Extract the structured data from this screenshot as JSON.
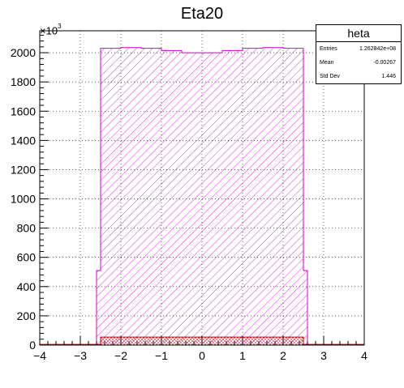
{
  "title": "Eta20",
  "y_multiplier": {
    "base": "×10",
    "exponent": "3"
  },
  "stats": {
    "name": "heta",
    "rows": [
      {
        "label": "Entries",
        "value": "1.262842e+08"
      },
      {
        "label": "Mean",
        "value": "-0.00267"
      },
      {
        "label": "Std Dev",
        "value": "1.446"
      }
    ]
  },
  "colors": {
    "main_hist": "#cc00cc",
    "sub_hist": "#cc0000",
    "frame": "#000000"
  },
  "chart_data": {
    "type": "histogram",
    "title": "Eta20",
    "xlim": [
      -4,
      4
    ],
    "ylim": [
      0,
      2150
    ],
    "x_ticks": [
      -4,
      -3,
      -2,
      -1,
      0,
      1,
      2,
      3,
      4
    ],
    "x_tick_labels": [
      "−4",
      "−3",
      "−2",
      "−1",
      "0",
      "1",
      "2",
      "3",
      "4"
    ],
    "y_ticks": [
      0,
      200,
      400,
      600,
      800,
      1000,
      1200,
      1400,
      1600,
      1800,
      2000
    ],
    "y_tick_labels": [
      "0",
      "200",
      "400",
      "600",
      "800",
      "1000",
      "1200",
      "1400",
      "1600",
      "1800",
      "2000"
    ],
    "grid": true,
    "legend": "top-right stats box",
    "series": [
      {
        "name": "heta",
        "style": "hatched",
        "bins": [
          {
            "x0": -2.6,
            "x1": -2.5,
            "y": 510
          },
          {
            "x0": -2.5,
            "x1": -2.0,
            "y": 2030
          },
          {
            "x0": -2.0,
            "x1": -1.5,
            "y": 2035
          },
          {
            "x0": -1.5,
            "x1": -1.0,
            "y": 2030
          },
          {
            "x0": -1.0,
            "x1": -0.5,
            "y": 2015
          },
          {
            "x0": -0.5,
            "x1": 0.0,
            "y": 2000
          },
          {
            "x0": 0.0,
            "x1": 0.5,
            "y": 2000
          },
          {
            "x0": 0.5,
            "x1": 1.0,
            "y": 2015
          },
          {
            "x0": 1.0,
            "x1": 1.5,
            "y": 2030
          },
          {
            "x0": 1.5,
            "x1": 2.0,
            "y": 2035
          },
          {
            "x0": 2.0,
            "x1": 2.5,
            "y": 2030
          },
          {
            "x0": 2.5,
            "x1": 2.6,
            "y": 510
          }
        ]
      },
      {
        "name": "",
        "style": "dotted",
        "bins": [
          {
            "x0": -4.0,
            "x1": -2.5,
            "y": 5
          },
          {
            "x0": -2.5,
            "x1": 2.5,
            "y": 55
          },
          {
            "x0": 2.5,
            "x1": 4.0,
            "y": 5
          }
        ]
      }
    ]
  }
}
